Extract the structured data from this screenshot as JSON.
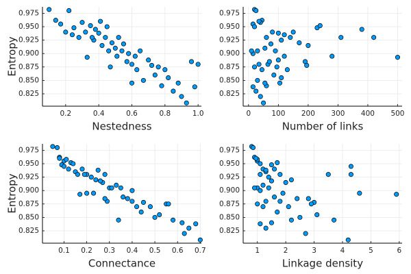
{
  "chart_data": [
    {
      "type": "scatter",
      "x_label": "Nestedness",
      "y_label": "Entropy",
      "color": "#009af9",
      "grid": true,
      "xlim": [
        0.06,
        1.02
      ],
      "ylim": [
        0.802,
        0.987
      ],
      "xticks": [
        0.2,
        0.4,
        0.6,
        0.8,
        {
          "value": 1.0,
          "label": "1.0"
        }
      ],
      "yticks": [
        0.825,
        {
          "value": 0.85,
          "label": "0.850"
        },
        0.875,
        {
          "value": 0.9,
          "label": "0.900"
        },
        0.925,
        {
          "value": 0.95,
          "label": "0.950"
        },
        0.975
      ],
      "x": [
        0.1,
        0.14,
        0.17,
        0.2,
        0.22,
        0.24,
        0.25,
        0.28,
        0.3,
        0.32,
        0.33,
        0.35,
        0.37,
        0.38,
        0.4,
        0.41,
        0.42,
        0.44,
        0.45,
        0.46,
        0.48,
        0.5,
        0.51,
        0.52,
        0.54,
        0.55,
        0.57,
        0.58,
        0.6,
        0.62,
        0.63,
        0.65,
        0.67,
        0.7,
        0.72,
        0.74,
        0.76,
        0.78,
        0.8,
        0.82,
        0.85,
        0.88,
        0.9,
        0.93,
        0.96,
        0.98,
        1.0,
        0.36,
        0.47,
        0.6
      ],
      "values": [
        0.982,
        0.962,
        0.955,
        0.94,
        0.98,
        0.935,
        0.948,
        0.93,
        0.958,
        0.94,
        0.893,
        0.952,
        0.925,
        0.945,
        0.938,
        0.96,
        0.915,
        0.93,
        0.95,
        0.905,
        0.92,
        0.91,
        0.895,
        0.93,
        0.905,
        0.918,
        0.885,
        0.9,
        0.88,
        0.895,
        0.87,
        0.905,
        0.85,
        0.888,
        0.878,
        0.86,
        0.875,
        0.84,
        0.87,
        0.855,
        0.83,
        0.845,
        0.82,
        0.808,
        0.885,
        0.838,
        0.88,
        0.93,
        0.875,
        0.845
      ]
    },
    {
      "type": "scatter",
      "x_label": "Number of links",
      "color": "#009af9",
      "grid": true,
      "xlim": [
        -18,
        515
      ],
      "ylim": [
        0.802,
        0.987
      ],
      "xticks": [
        0,
        100,
        200,
        300,
        400,
        500
      ],
      "yticks": [
        0.825,
        {
          "value": 0.85,
          "label": "0.850"
        },
        0.875,
        {
          "value": 0.9,
          "label": "0.900"
        },
        0.925,
        {
          "value": 0.95,
          "label": "0.950"
        },
        0.975
      ],
      "x": [
        20,
        45,
        15,
        80,
        25,
        120,
        230,
        60,
        40,
        150,
        500,
        240,
        110,
        380,
        100,
        35,
        200,
        310,
        20,
        90,
        170,
        55,
        280,
        140,
        30,
        75,
        190,
        15,
        65,
        120,
        45,
        10,
        30,
        100,
        195,
        85,
        20,
        60,
        130,
        110,
        25,
        55,
        40,
        50,
        70,
        15,
        35,
        420,
        95,
        105
      ],
      "values": [
        0.982,
        0.962,
        0.955,
        0.94,
        0.98,
        0.935,
        0.948,
        0.93,
        0.958,
        0.94,
        0.893,
        0.952,
        0.925,
        0.945,
        0.938,
        0.96,
        0.915,
        0.93,
        0.95,
        0.905,
        0.92,
        0.91,
        0.895,
        0.93,
        0.905,
        0.918,
        0.885,
        0.9,
        0.88,
        0.895,
        0.87,
        0.905,
        0.85,
        0.888,
        0.878,
        0.86,
        0.875,
        0.84,
        0.87,
        0.855,
        0.83,
        0.845,
        0.82,
        0.808,
        0.885,
        0.838,
        0.88,
        0.93,
        0.875,
        0.845
      ]
    },
    {
      "type": "scatter",
      "x_label": "Connectance",
      "y_label": "Entropy",
      "color": "#009af9",
      "grid": true,
      "xlim": [
        0.005,
        0.705
      ],
      "ylim": [
        0.802,
        0.987
      ],
      "xticks": [
        0.1,
        0.2,
        0.3,
        0.4,
        0.5,
        0.6,
        0.7
      ],
      "yticks": [
        0.825,
        {
          "value": 0.85,
          "label": "0.850"
        },
        0.875,
        {
          "value": 0.9,
          "label": "0.900"
        },
        0.925,
        {
          "value": 0.95,
          "label": "0.950"
        },
        0.975
      ],
      "x": [
        0.05,
        0.08,
        0.1,
        0.12,
        0.07,
        0.15,
        0.09,
        0.2,
        0.11,
        0.18,
        0.17,
        0.13,
        0.22,
        0.1,
        0.25,
        0.08,
        0.27,
        0.16,
        0.14,
        0.3,
        0.24,
        0.33,
        0.2,
        0.28,
        0.35,
        0.26,
        0.38,
        0.4,
        0.29,
        0.23,
        0.42,
        0.31,
        0.5,
        0.36,
        0.45,
        0.44,
        0.55,
        0.62,
        0.48,
        0.52,
        0.65,
        0.58,
        0.63,
        0.7,
        0.28,
        0.68,
        0.4,
        0.19,
        0.56,
        0.34
      ],
      "values": [
        0.982,
        0.962,
        0.955,
        0.94,
        0.98,
        0.935,
        0.948,
        0.93,
        0.958,
        0.94,
        0.893,
        0.952,
        0.925,
        0.945,
        0.938,
        0.96,
        0.915,
        0.93,
        0.95,
        0.905,
        0.92,
        0.91,
        0.895,
        0.93,
        0.905,
        0.918,
        0.885,
        0.9,
        0.88,
        0.895,
        0.87,
        0.905,
        0.85,
        0.888,
        0.878,
        0.86,
        0.875,
        0.84,
        0.87,
        0.855,
        0.83,
        0.845,
        0.82,
        0.808,
        0.885,
        0.838,
        0.88,
        0.93,
        0.875,
        0.845
      ]
    },
    {
      "type": "scatter",
      "x_label": "Linkage density",
      "color": "#009af9",
      "grid": true,
      "xlim": [
        0.5,
        6.1
      ],
      "ylim": [
        0.802,
        0.987
      ],
      "xticks": [
        1,
        2,
        3,
        4,
        5,
        6
      ],
      "yticks": [
        0.825,
        {
          "value": 0.85,
          "label": "0.850"
        },
        0.875,
        {
          "value": 0.9,
          "label": "0.900"
        },
        0.925,
        {
          "value": 0.95,
          "label": "0.950"
        },
        0.975
      ],
      "x": [
        0.8,
        0.9,
        1.0,
        1.2,
        0.85,
        1.3,
        1.5,
        1.1,
        1.0,
        1.6,
        5.9,
        1.7,
        1.4,
        4.3,
        1.3,
        0.95,
        2.0,
        3.5,
        1.1,
        1.4,
        2.2,
        1.2,
        4.6,
        1.8,
        1.0,
        1.5,
        2.8,
        1.1,
        1.3,
        1.9,
        1.2,
        0.9,
        2.5,
        1.6,
        3.0,
        1.7,
        1.0,
        1.5,
        2.1,
        3.1,
        1.3,
        2.2,
        2.7,
        4.2,
        2.4,
        1.1,
        1.8,
        4.3,
        2.9,
        3.7
      ],
      "values": [
        0.982,
        0.962,
        0.955,
        0.94,
        0.98,
        0.935,
        0.948,
        0.93,
        0.958,
        0.94,
        0.893,
        0.952,
        0.925,
        0.945,
        0.938,
        0.96,
        0.915,
        0.93,
        0.95,
        0.905,
        0.92,
        0.91,
        0.895,
        0.93,
        0.905,
        0.918,
        0.885,
        0.9,
        0.88,
        0.895,
        0.87,
        0.905,
        0.85,
        0.888,
        0.878,
        0.86,
        0.875,
        0.84,
        0.87,
        0.855,
        0.83,
        0.845,
        0.82,
        0.808,
        0.885,
        0.838,
        0.88,
        0.93,
        0.875,
        0.845
      ]
    }
  ]
}
